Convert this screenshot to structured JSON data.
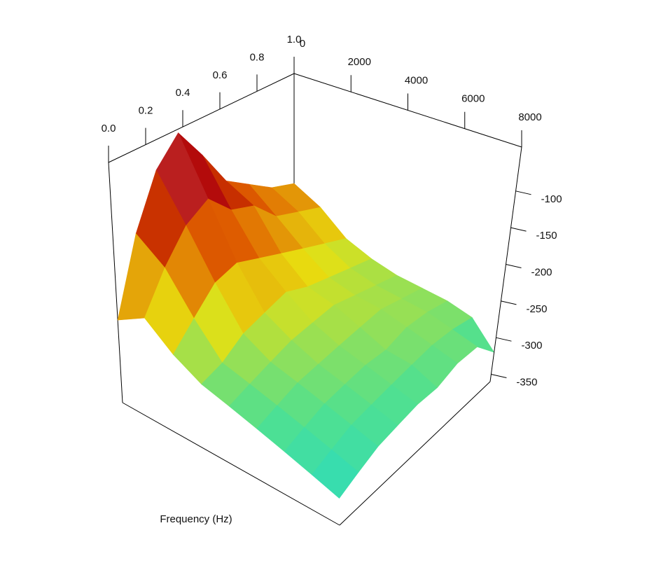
{
  "chart_data": {
    "type": "surface",
    "x_label": "Frequency (Hz)",
    "times": [
      0,
      0.125,
      0.25,
      0.375,
      0.5,
      0.625,
      0.75,
      0.875,
      1
    ],
    "frequencies": [
      0,
      1000,
      2000,
      3000,
      4000,
      5000,
      6000,
      7000,
      8000
    ],
    "values": [
      [
        -250,
        -230,
        -260,
        -280,
        -290,
        -300,
        -310,
        -320,
        -330
      ],
      [
        -150,
        -180,
        -230,
        -270,
        -280,
        -290,
        -300,
        -310,
        -320
      ],
      [
        -80,
        -140,
        -200,
        -250,
        -270,
        -280,
        -290,
        -300,
        -310
      ],
      [
        -45,
        -120,
        -190,
        -240,
        -260,
        -275,
        -285,
        -295,
        -305
      ],
      [
        -90,
        -150,
        -200,
        -230,
        -255,
        -270,
        -280,
        -290,
        -300
      ],
      [
        -140,
        -160,
        -210,
        -240,
        -250,
        -265,
        -280,
        -285,
        -300
      ],
      [
        -160,
        -190,
        -220,
        -245,
        -255,
        -260,
        -270,
        -280,
        -290
      ],
      [
        -180,
        -200,
        -230,
        -250,
        -260,
        -265,
        -270,
        -280,
        -290
      ],
      [
        -190,
        -210,
        -240,
        -255,
        -265,
        -270,
        -275,
        -285,
        -320
      ]
    ],
    "tlim": [
      0,
      1
    ],
    "tticks": [
      {
        "value": 0,
        "label": "0.0"
      },
      0.2,
      0.4,
      0.6,
      0.8,
      {
        "value": 1,
        "label": "1.0"
      }
    ],
    "flim": [
      0,
      8000
    ],
    "fticks": [
      0,
      2000,
      4000,
      6000,
      8000
    ],
    "zlim": [
      -360,
      -40
    ],
    "zticks": [
      -100,
      -150,
      -200,
      -250,
      -300,
      -350
    ],
    "colormap": [
      "#10d8e0",
      "#50e090",
      "#e8e010",
      "#e06000",
      "#b00000",
      "#ffffff"
    ]
  }
}
